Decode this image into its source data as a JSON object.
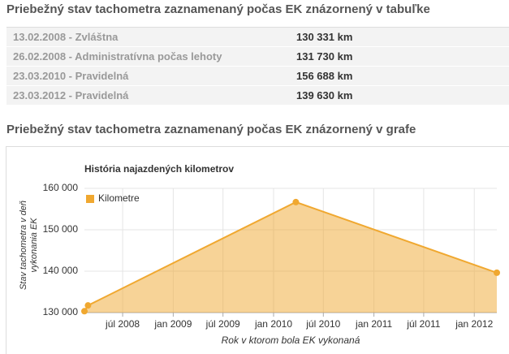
{
  "headings": [
    "Priebežný stav tachometra zaznamenaný počas EK znázornený v tabuľke",
    "Priebežný stav tachometra zaznamenaný počas EK znázornený v grafe"
  ],
  "table": {
    "rows": [
      [
        "13.02.2008 - Zvláštna",
        "130 331 km"
      ],
      [
        "26.02.2008 - Administratívna počas lehoty",
        "131 730 km"
      ],
      [
        "23.03.2010 - Pravidelná",
        "156 688 km"
      ],
      [
        "23.03.2012 - Pravidelná",
        "139 630 km"
      ]
    ]
  },
  "chart_data": {
    "type": "area",
    "title": "História najazdených kilometrov",
    "x_label": "Rok v ktorom bola EK vykonaná",
    "y_label": "Stav tachometra v deň vykonania EK",
    "x": [
      "2008-02-13",
      "2008-02-26",
      "2010-03-23",
      "2012-03-23"
    ],
    "series": [
      {
        "name": "Kilometre",
        "color": "#f0a830",
        "values": [
          130331,
          131730,
          156688,
          139630
        ]
      }
    ],
    "xlim": [
      "2008-02-13",
      "2012-03-23"
    ],
    "xticks": [
      {
        "value": "2008-07-01",
        "label": "júl 2008"
      },
      {
        "value": "2009-01-01",
        "label": "jan 2009"
      },
      {
        "value": "2009-07-01",
        "label": "júl 2009"
      },
      {
        "value": "2010-01-01",
        "label": "jan 2010"
      },
      {
        "value": "2010-07-01",
        "label": "júl 2010"
      },
      {
        "value": "2011-01-01",
        "label": "jan 2011"
      },
      {
        "value": "2011-07-01",
        "label": "júl 2011"
      },
      {
        "value": "2012-01-01",
        "label": "jan 2012"
      }
    ],
    "ylim": [
      130000,
      160000
    ],
    "yticks": [
      {
        "value": 130000,
        "label": "130 000"
      },
      {
        "value": 140000,
        "label": "140 000"
      },
      {
        "value": 150000,
        "label": "150 000"
      },
      {
        "value": 160000,
        "label": "160 000"
      }
    ],
    "grid": true,
    "legend": "top-left"
  }
}
